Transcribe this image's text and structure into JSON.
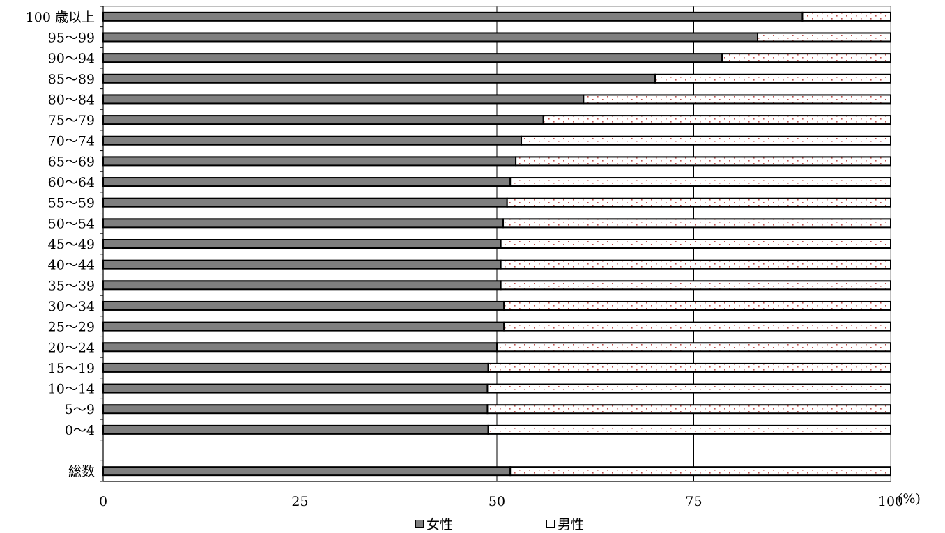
{
  "chart_data": {
    "type": "bar",
    "orientation": "horizontal",
    "stacked": true,
    "title": "",
    "xlabel": "",
    "ylabel": "",
    "x_unit": "(%)",
    "xlim": [
      0,
      100
    ],
    "x_ticks": [
      "0",
      "25",
      "50",
      "75",
      "100"
    ],
    "grid": true,
    "legend_position": "bottom",
    "categories": [
      "100 歳以上",
      "95～99",
      "90～94",
      "85～89",
      "80～84",
      "75～79",
      "70～74",
      "65～69",
      "60～64",
      "55～59",
      "50～54",
      "45～49",
      "40～44",
      "35～39",
      "30～34",
      "25～29",
      "20～24",
      "15～19",
      "10～14",
      "5～9",
      "0～4",
      "",
      "総数"
    ],
    "series": [
      {
        "name": "女性",
        "color": "#7f7f7f",
        "pattern": "solid",
        "values": [
          88.8,
          83.1,
          78.6,
          70.1,
          61.0,
          55.9,
          53.1,
          52.4,
          51.7,
          51.3,
          50.8,
          50.5,
          50.5,
          50.5,
          50.9,
          50.9,
          50.0,
          48.9,
          48.8,
          48.8,
          48.9,
          null,
          51.7
        ]
      },
      {
        "name": "男性",
        "color": "#ffffff",
        "pattern": "dots",
        "values": [
          11.2,
          16.9,
          21.4,
          29.9,
          39.0,
          44.1,
          46.9,
          47.6,
          48.3,
          48.7,
          49.2,
          49.5,
          49.5,
          49.5,
          49.1,
          49.1,
          50.0,
          51.1,
          51.2,
          51.2,
          51.1,
          null,
          48.3
        ]
      }
    ]
  }
}
